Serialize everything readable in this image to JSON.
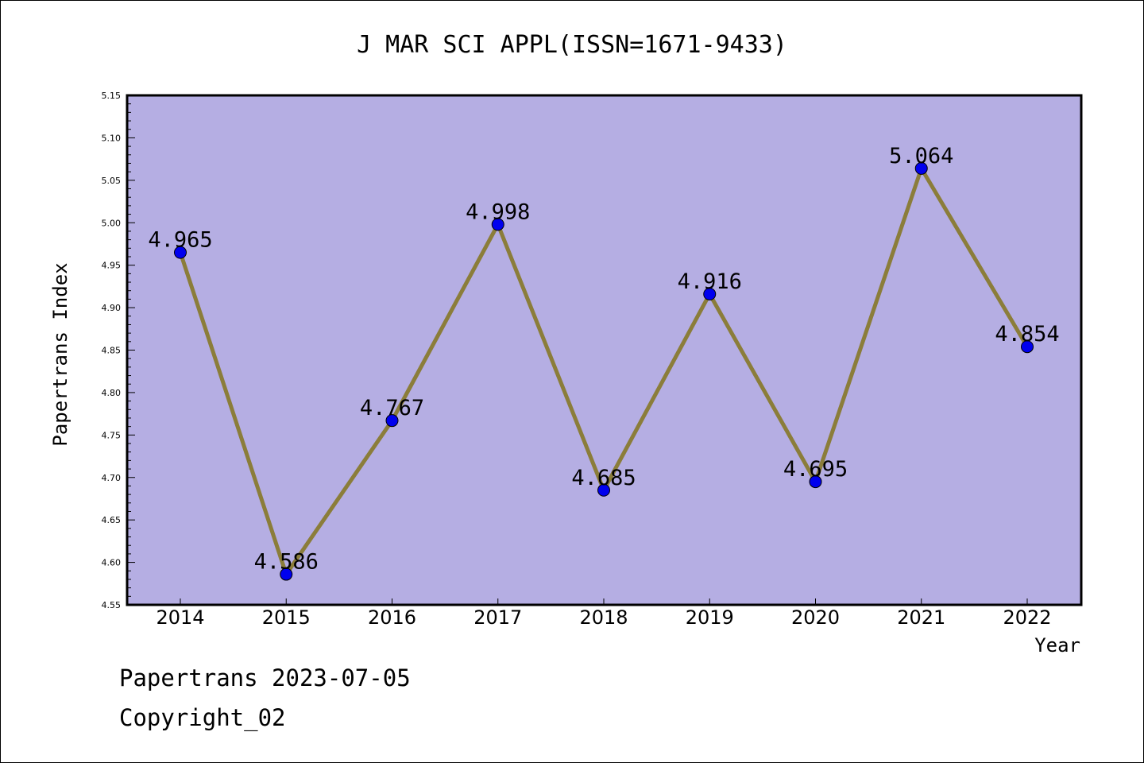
{
  "chart_data": {
    "type": "line",
    "title": "J MAR SCI APPL(ISSN=1671-9433)",
    "xlabel": "Year",
    "ylabel": "Papertrans Index",
    "categories": [
      "2014",
      "2015",
      "2016",
      "2017",
      "2018",
      "2019",
      "2020",
      "2021",
      "2022"
    ],
    "values": [
      4.965,
      4.586,
      4.767,
      4.998,
      4.685,
      4.916,
      4.695,
      5.064,
      4.854
    ],
    "value_labels": [
      "4.965",
      "4.586",
      "4.767",
      "4.998",
      "4.685",
      "4.916",
      "4.695",
      "5.064",
      "4.854"
    ],
    "ylim": [
      4.55,
      5.15
    ],
    "yticks": [
      "4.55",
      "4.60",
      "4.65",
      "4.70",
      "4.75",
      "4.80",
      "4.85",
      "4.90",
      "4.95",
      "5.00",
      "5.05",
      "5.10",
      "5.15"
    ],
    "grid": false,
    "legend": "none",
    "colors": {
      "plot_background": "#b5aee3",
      "line": "#8b7d3a",
      "marker": "#0000ee"
    }
  },
  "footer": {
    "date_line": "Papertrans 2023-07-05",
    "copyright": "Copyright_02"
  }
}
